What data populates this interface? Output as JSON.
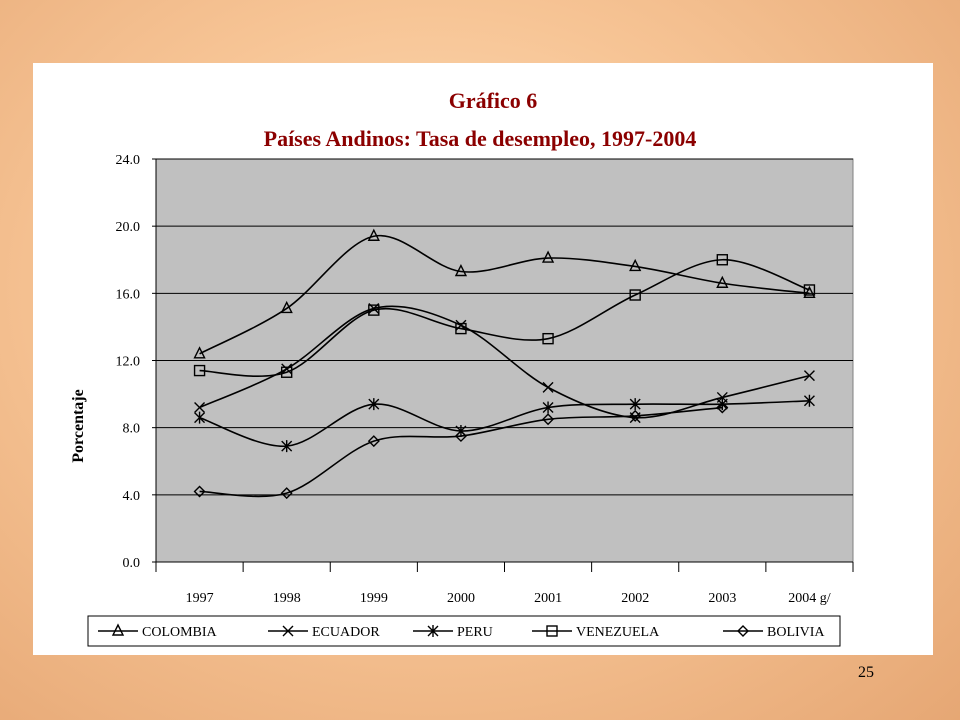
{
  "slide": {
    "page_number": "25"
  },
  "chart_data": {
    "type": "line",
    "title": "Gráfico 6",
    "subtitle": "Países Andinos: Tasa de desempleo, 1997-2004",
    "xlabel": "",
    "ylabel": "Porcentaje",
    "categories": [
      "1997",
      "1998",
      "1999",
      "2000",
      "2001",
      "2002",
      "2003",
      "2004 g/"
    ],
    "ylim": [
      0,
      24
    ],
    "yticks": [
      "0.0",
      "4.0",
      "8.0",
      "12.0",
      "16.0",
      "20.0",
      "24.0"
    ],
    "grid": "horizontal",
    "legend_position": "bottom",
    "series": [
      {
        "name": "COLOMBIA",
        "marker": "triangle",
        "values": [
          12.4,
          15.1,
          19.4,
          17.3,
          18.1,
          17.6,
          16.6,
          16.0
        ]
      },
      {
        "name": "ECUADOR",
        "marker": "x",
        "values": [
          9.2,
          11.5,
          15.1,
          14.1,
          10.4,
          8.6,
          9.8,
          11.1
        ]
      },
      {
        "name": "PERU",
        "marker": "star",
        "values": [
          8.6,
          6.9,
          9.4,
          7.8,
          9.2,
          9.4,
          9.4,
          9.6
        ]
      },
      {
        "name": "VENEZUELA",
        "marker": "square",
        "values": [
          11.4,
          11.3,
          15.0,
          13.9,
          13.3,
          15.9,
          18.0,
          16.2
        ]
      },
      {
        "name": "BOLIVIA",
        "marker": "diamond",
        "values": [
          4.2,
          4.1,
          7.2,
          7.5,
          8.5,
          8.7,
          9.2,
          null
        ]
      }
    ],
    "colors": {
      "title": "#8b0000",
      "plot_background": "#c0c0c0",
      "line": "#000000"
    }
  }
}
